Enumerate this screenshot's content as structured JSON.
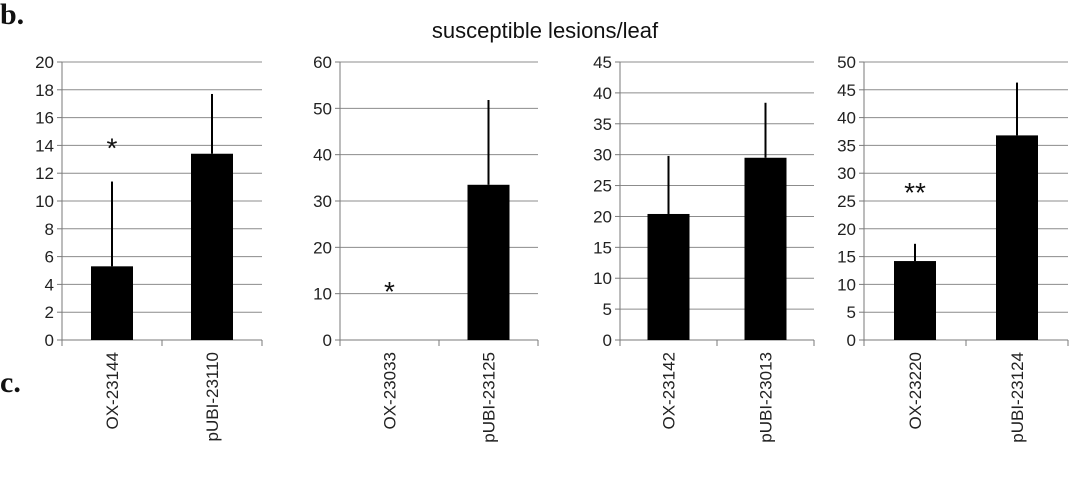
{
  "figure": {
    "title": "susceptible lesions/leaf",
    "panel_letter_top": "b.",
    "panel_letter_bottom": "c."
  },
  "colors": {
    "bar": "#000000",
    "grid": "#8c8c8c"
  },
  "chart_data": [
    {
      "type": "bar",
      "categories": [
        "OX-23144",
        "pUBI-23110"
      ],
      "values": [
        5.3,
        13.4
      ],
      "errors": [
        6.1,
        4.3
      ],
      "yticks": [
        0,
        2,
        4,
        6,
        8,
        10,
        12,
        14,
        16,
        18,
        20
      ],
      "ylim": [
        0,
        20
      ],
      "annotations": [
        {
          "text": "*",
          "category": 0,
          "y": 14
        }
      ],
      "grid": true
    },
    {
      "type": "bar",
      "categories": [
        "OX-23033",
        "pUBI-23125"
      ],
      "values": [
        0,
        33.5
      ],
      "errors": [
        0,
        18.3
      ],
      "yticks": [
        0,
        10,
        20,
        30,
        40,
        50,
        60
      ],
      "ylim": [
        0,
        60
      ],
      "annotations": [
        {
          "text": "*",
          "category": 0,
          "y": 11
        }
      ],
      "grid": true
    },
    {
      "type": "bar",
      "categories": [
        "OX-23142",
        "pUBI-23013"
      ],
      "values": [
        20.4,
        29.5
      ],
      "errors": [
        9.4,
        8.9
      ],
      "yticks": [
        0,
        5,
        10,
        15,
        20,
        25,
        30,
        35,
        40,
        45
      ],
      "ylim": [
        0,
        45
      ],
      "annotations": [],
      "grid": true
    },
    {
      "type": "bar",
      "categories": [
        "OX-23220",
        "pUBI-23124"
      ],
      "values": [
        14.2,
        36.8
      ],
      "errors": [
        3.1,
        9.5
      ],
      "yticks": [
        0,
        5,
        10,
        15,
        20,
        25,
        30,
        35,
        40,
        45,
        50
      ],
      "ylim": [
        0,
        50
      ],
      "annotations": [
        {
          "text": "**",
          "category": 0,
          "y": 27
        }
      ],
      "grid": true
    }
  ]
}
